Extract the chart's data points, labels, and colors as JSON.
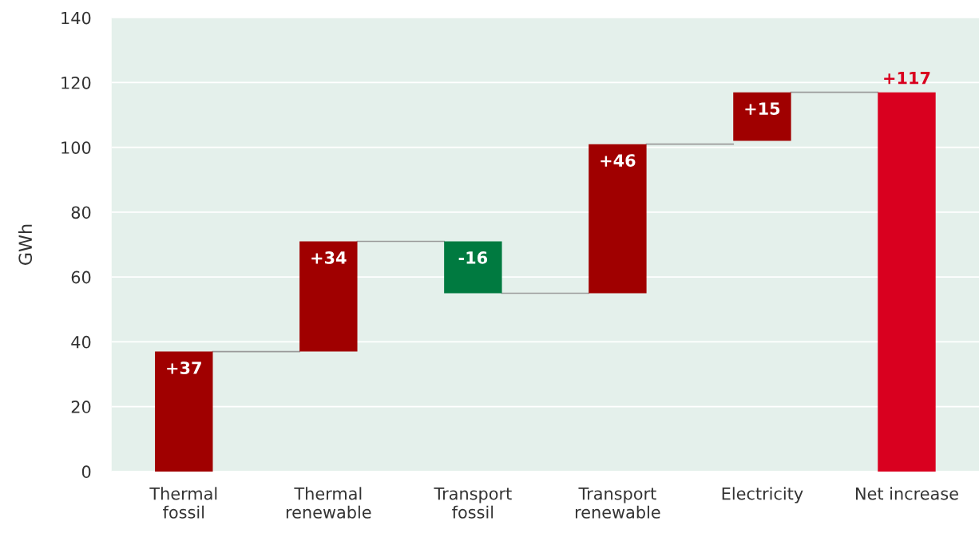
{
  "chart_data": {
    "type": "bar",
    "ylabel": "GWh",
    "categories": [
      "Thermal\nfossil",
      "Thermal\nrenewable",
      "Transport\nfossil",
      "Transport\nrenewable",
      "Electricity",
      "Net increase"
    ],
    "values": [
      37,
      34,
      -16,
      46,
      15,
      117
    ],
    "base": [
      0,
      37,
      71,
      55,
      102,
      0
    ],
    "colors": [
      "#a00000",
      "#a00000",
      "#007a40",
      "#a00000",
      "#a00000",
      "#d9001f"
    ],
    "value_labels": [
      "+37",
      "+34",
      "-16",
      "+46",
      "+15",
      "+117"
    ],
    "ylim": [
      0,
      140
    ],
    "yticks": [
      0,
      20,
      40,
      60,
      80,
      100,
      120,
      140
    ],
    "grid": "y"
  }
}
